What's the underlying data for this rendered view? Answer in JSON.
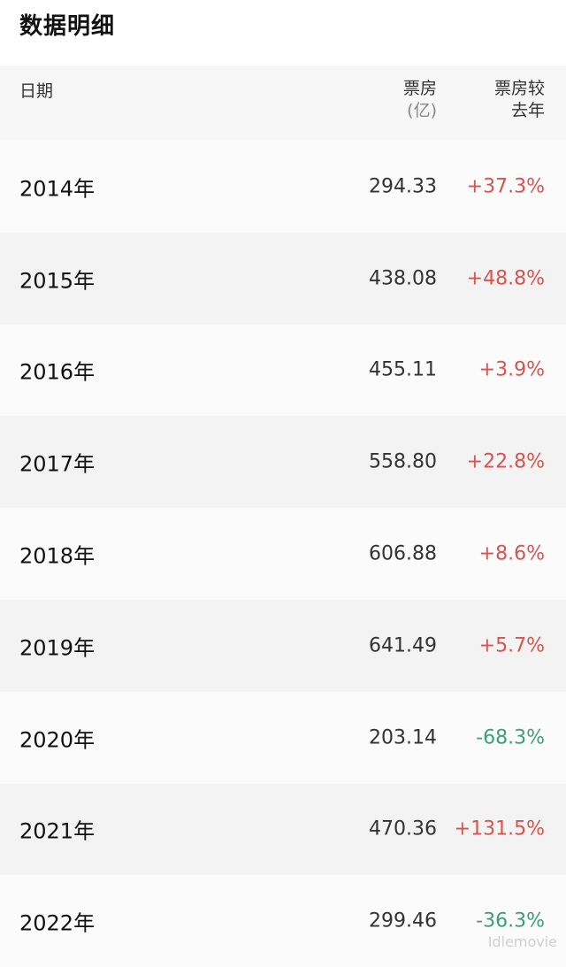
{
  "page": {
    "title": "数据明细"
  },
  "table": {
    "headers": {
      "date": "日期",
      "box_office": "票房",
      "box_office_unit": "(亿)",
      "change_line1": "票房较",
      "change_line2": "去年"
    },
    "rows": [
      {
        "date": "2014年",
        "box": "294.33",
        "change": "+37.3%",
        "trend": "up"
      },
      {
        "date": "2015年",
        "box": "438.08",
        "change": "+48.8%",
        "trend": "up"
      },
      {
        "date": "2016年",
        "box": "455.11",
        "change": "+3.9%",
        "trend": "up"
      },
      {
        "date": "2017年",
        "box": "558.80",
        "change": "+22.8%",
        "trend": "up"
      },
      {
        "date": "2018年",
        "box": "606.88",
        "change": "+8.6%",
        "trend": "up"
      },
      {
        "date": "2019年",
        "box": "641.49",
        "change": "+5.7%",
        "trend": "up"
      },
      {
        "date": "2020年",
        "box": "203.14",
        "change": "-68.3%",
        "trend": "down"
      },
      {
        "date": "2021年",
        "box": "470.36",
        "change": "+131.5%",
        "trend": "up"
      },
      {
        "date": "2022年",
        "box": "299.46",
        "change": "-36.3%",
        "trend": "down"
      }
    ]
  },
  "colors": {
    "up": "#d9534f",
    "down": "#3f9e7a"
  },
  "watermark": "Idlemovie"
}
